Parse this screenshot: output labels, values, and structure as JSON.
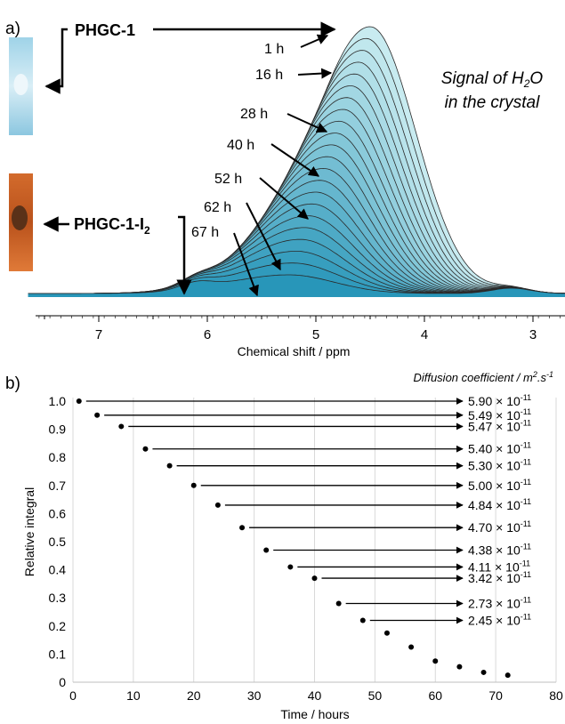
{
  "panel_a": {
    "panel_label": "a)",
    "labels": {
      "phgc1": "PHGC-1",
      "phgc1_i2_main": "PHGC-1-I",
      "phgc1_i2_sub": "2",
      "signal_line1": "Signal of H",
      "signal_sub": "2",
      "signal_line1_end": "O",
      "signal_line2": "in the crystal"
    },
    "colors": {
      "fill_light": "#a8dde7",
      "fill_dark": "#2e9bb3",
      "outline": "#222222",
      "photo_top": "#bfe1ef",
      "photo_bottom": "#c8602a"
    }
  },
  "panel_b": {
    "panel_label": "b)",
    "header": "Diffusion coefficient / m².s⁻¹",
    "header_main": "Diffusion coefficient / m",
    "header_sup1": "2",
    "header_mid": ".s",
    "header_sup2": "-1"
  },
  "chart_data": [
    {
      "type": "area",
      "title": "",
      "xlabel": "Chemical shift / ppm",
      "ylabel": "",
      "x_reversed": true,
      "xlim": [
        7.55,
        2.3
      ],
      "x_ticks": [
        7,
        6,
        5,
        4,
        3
      ],
      "series": [
        {
          "name": "1 h",
          "peak_ppm": 4.52,
          "relative_height": 1.0
        },
        {
          "name": "16 h",
          "peak_ppm": 4.55,
          "relative_height": 0.91
        },
        {
          "name": "28 h",
          "peak_ppm": 4.6,
          "relative_height": 0.76
        },
        {
          "name": "40 h",
          "peak_ppm": 4.68,
          "relative_height": 0.62
        },
        {
          "name": "52 h",
          "peak_ppm": 4.78,
          "relative_height": 0.46
        },
        {
          "name": "62 h",
          "peak_ppm": 4.95,
          "relative_height": 0.3
        },
        {
          "name": "67 h",
          "peak_ppm": 5.15,
          "relative_height": 0.16
        }
      ],
      "annotations": [
        "PHGC-1",
        "PHGC-1-I2",
        "Signal of H2O in the crystal"
      ]
    },
    {
      "type": "scatter",
      "title": "",
      "xlabel": "Time / hours",
      "ylabel": "Relative integral",
      "xlim": [
        0,
        80
      ],
      "ylim": [
        0,
        1.0
      ],
      "x_ticks": [
        0,
        10,
        20,
        30,
        40,
        50,
        60,
        70,
        80
      ],
      "y_ticks": [
        "0",
        "0.1",
        "0.2",
        "0.3",
        "0.4",
        "0.5",
        "0.6",
        "0.7",
        "0.8",
        "0.9",
        "1.0"
      ],
      "grid": "vertical",
      "points": [
        {
          "x": 1,
          "y": 1.0
        },
        {
          "x": 4,
          "y": 0.95
        },
        {
          "x": 8,
          "y": 0.91
        },
        {
          "x": 12,
          "y": 0.83
        },
        {
          "x": 16,
          "y": 0.77
        },
        {
          "x": 20,
          "y": 0.7
        },
        {
          "x": 24,
          "y": 0.63
        },
        {
          "x": 28,
          "y": 0.55
        },
        {
          "x": 32,
          "y": 0.47
        },
        {
          "x": 36,
          "y": 0.41
        },
        {
          "x": 40,
          "y": 0.37
        },
        {
          "x": 44,
          "y": 0.28
        },
        {
          "x": 48,
          "y": 0.22
        },
        {
          "x": 52,
          "y": 0.175
        },
        {
          "x": 56,
          "y": 0.125
        },
        {
          "x": 60,
          "y": 0.075
        },
        {
          "x": 64,
          "y": 0.055
        },
        {
          "x": 68,
          "y": 0.035
        },
        {
          "x": 72,
          "y": 0.025
        }
      ],
      "diffusion_coefficients": [
        {
          "point_index": 0,
          "mantissa": "5.90 × 10",
          "exponent": "-11"
        },
        {
          "point_index": 1,
          "mantissa": "5.49 × 10",
          "exponent": "-11"
        },
        {
          "point_index": 2,
          "mantissa": "5.47 × 10",
          "exponent": "-11"
        },
        {
          "point_index": 3,
          "mantissa": "5.40 × 10",
          "exponent": "-11"
        },
        {
          "point_index": 4,
          "mantissa": "5.30 × 10",
          "exponent": "-11"
        },
        {
          "point_index": 5,
          "mantissa": "5.00 × 10",
          "exponent": "-11"
        },
        {
          "point_index": 6,
          "mantissa": "4.84 × 10",
          "exponent": "-11"
        },
        {
          "point_index": 7,
          "mantissa": "4.70 × 10",
          "exponent": "-11"
        },
        {
          "point_index": 8,
          "mantissa": "4.38 × 10",
          "exponent": "-11"
        },
        {
          "point_index": 9,
          "mantissa": "4.11 × 10",
          "exponent": "-11"
        },
        {
          "point_index": 10,
          "mantissa": "3.42 × 10",
          "exponent": "-11"
        },
        {
          "point_index": 11,
          "mantissa": "2.73 × 10",
          "exponent": "-11"
        },
        {
          "point_index": 12,
          "mantissa": "2.45 × 10",
          "exponent": "-11"
        }
      ]
    }
  ]
}
